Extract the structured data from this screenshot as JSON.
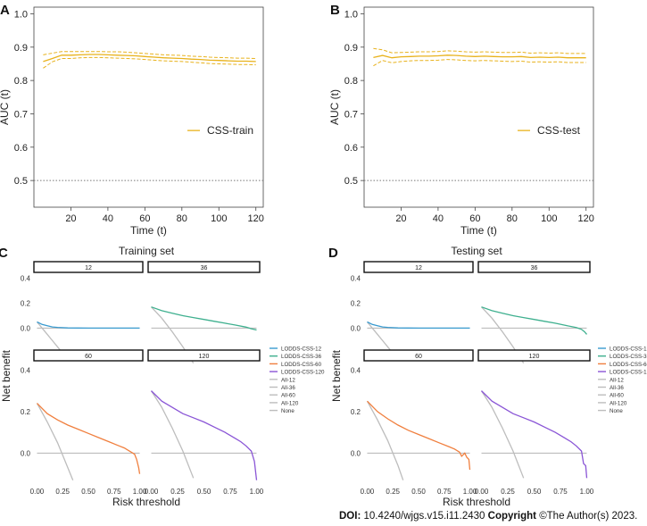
{
  "figure": {
    "footer_doi_label": "DOI:",
    "footer_doi": "10.4240/wjgs.v15.i11.2430",
    "footer_copyright_label": "Copyright",
    "footer_copyright": "©The Author(s) 2023.",
    "colors": {
      "auc_line": "#e8b21c",
      "lodds12": "#3a9bd0",
      "lodds36": "#3fb08f",
      "lodds60": "#f07f3e",
      "lodds120": "#8a55d6",
      "all": "#bdbdbd",
      "none": "#bdbdbd"
    }
  },
  "chart_data": [
    {
      "id": "A",
      "panel_label": "A",
      "type": "line",
      "title": "",
      "xlabel": "Time (t)",
      "ylabel": "AUC (t)",
      "xlim": [
        0,
        124
      ],
      "ylim": [
        0.42,
        1.02
      ],
      "xticks": [
        "20",
        "40",
        "60",
        "80",
        "100",
        "120"
      ],
      "xtick_values": [
        20,
        40,
        60,
        80,
        100,
        120
      ],
      "yticks": [
        "0.5",
        "0.6",
        "0.7",
        "0.8",
        "0.9",
        "1.0"
      ],
      "ytick_values": [
        0.5,
        0.6,
        0.7,
        0.8,
        0.9,
        1.0
      ],
      "reference_line": 0.5,
      "legend": "CSS-train",
      "series": [
        {
          "name": "CSS-train",
          "x": [
            5,
            10,
            15,
            20,
            25,
            30,
            35,
            40,
            45,
            50,
            55,
            60,
            65,
            70,
            75,
            80,
            85,
            90,
            95,
            100,
            105,
            110,
            115,
            120
          ],
          "y": [
            0.857,
            0.866,
            0.876,
            0.876,
            0.877,
            0.878,
            0.878,
            0.877,
            0.876,
            0.875,
            0.874,
            0.872,
            0.87,
            0.868,
            0.867,
            0.866,
            0.864,
            0.863,
            0.861,
            0.86,
            0.859,
            0.858,
            0.858,
            0.857
          ],
          "lower": [
            0.837,
            0.856,
            0.866,
            0.866,
            0.868,
            0.869,
            0.869,
            0.868,
            0.867,
            0.866,
            0.865,
            0.863,
            0.861,
            0.859,
            0.858,
            0.857,
            0.855,
            0.853,
            0.851,
            0.85,
            0.849,
            0.848,
            0.848,
            0.847
          ],
          "upper": [
            0.877,
            0.882,
            0.887,
            0.887,
            0.887,
            0.887,
            0.887,
            0.886,
            0.886,
            0.885,
            0.883,
            0.881,
            0.879,
            0.877,
            0.876,
            0.875,
            0.873,
            0.872,
            0.87,
            0.869,
            0.868,
            0.867,
            0.867,
            0.866
          ]
        }
      ]
    },
    {
      "id": "B",
      "panel_label": "B",
      "type": "line",
      "title": "",
      "xlabel": "Time (t)",
      "ylabel": "AUC (t)",
      "xlim": [
        0,
        124
      ],
      "ylim": [
        0.42,
        1.02
      ],
      "xticks": [
        "20",
        "40",
        "60",
        "80",
        "100",
        "120"
      ],
      "xtick_values": [
        20,
        40,
        60,
        80,
        100,
        120
      ],
      "yticks": [
        "0.5",
        "0.6",
        "0.7",
        "0.8",
        "0.9",
        "1.0"
      ],
      "ytick_values": [
        0.5,
        0.6,
        0.7,
        0.8,
        0.9,
        1.0
      ],
      "reference_line": 0.5,
      "legend": "CSS-test",
      "series": [
        {
          "name": "CSS-test",
          "x": [
            5,
            10,
            15,
            20,
            25,
            30,
            35,
            40,
            45,
            50,
            55,
            60,
            65,
            70,
            75,
            80,
            85,
            90,
            95,
            100,
            105,
            110,
            115,
            120
          ],
          "y": [
            0.869,
            0.875,
            0.868,
            0.871,
            0.872,
            0.873,
            0.873,
            0.874,
            0.876,
            0.875,
            0.873,
            0.872,
            0.873,
            0.872,
            0.871,
            0.871,
            0.872,
            0.869,
            0.87,
            0.869,
            0.87,
            0.868,
            0.868,
            0.868
          ],
          "lower": [
            0.844,
            0.86,
            0.853,
            0.857,
            0.859,
            0.86,
            0.86,
            0.861,
            0.863,
            0.862,
            0.86,
            0.859,
            0.86,
            0.859,
            0.858,
            0.857,
            0.858,
            0.855,
            0.856,
            0.855,
            0.856,
            0.854,
            0.854,
            0.854
          ],
          "upper": [
            0.896,
            0.892,
            0.883,
            0.884,
            0.885,
            0.886,
            0.886,
            0.887,
            0.889,
            0.888,
            0.886,
            0.885,
            0.886,
            0.885,
            0.884,
            0.884,
            0.885,
            0.882,
            0.883,
            0.882,
            0.883,
            0.881,
            0.881,
            0.881
          ]
        }
      ]
    },
    {
      "id": "C",
      "panel_label": "C",
      "type": "line",
      "title": "Training set",
      "xlabel": "Risk threshold",
      "ylabel": "Net benefit",
      "xlim": [
        -0.03,
        1.03
      ],
      "ylim": [
        -0.14,
        0.44
      ],
      "xticks": [
        "0.00",
        "0.25",
        "0.50",
        "0.75",
        "1.00"
      ],
      "xtick_values": [
        0,
        0.25,
        0.5,
        0.75,
        1.0
      ],
      "yticks": [
        "0.0",
        "0.2",
        "0.4"
      ],
      "ytick_values": [
        0,
        0.2,
        0.4
      ],
      "legend": [
        "LODDS-CSS-12",
        "LODDS-CSS-36",
        "LODDS-CSS-60",
        "LODDS-CSS-120",
        "All-12",
        "All-36",
        "All-60",
        "All-120",
        "None"
      ],
      "facets": [
        {
          "strip": "12",
          "model": "LODDS-CSS-12",
          "x": [
            0,
            0.05,
            0.1,
            0.15,
            0.2,
            0.3,
            0.4,
            0.5,
            0.6,
            0.7,
            0.8,
            0.9,
            1.0
          ],
          "y": [
            0.05,
            0.03,
            0.02,
            0.01,
            0.006,
            0.002,
            0.001,
            0,
            0,
            0,
            0,
            0,
            0
          ],
          "all_x": [
            0,
            0.05,
            0.1,
            0.15,
            0.2,
            0.25,
            0.3
          ],
          "all_y": [
            0.05,
            0.0,
            -0.05,
            -0.1,
            -0.15,
            -0.2,
            -0.26
          ]
        },
        {
          "strip": "36",
          "model": "LODDS-CSS-36",
          "x": [
            0,
            0.1,
            0.2,
            0.3,
            0.4,
            0.5,
            0.6,
            0.7,
            0.8,
            0.9,
            0.95,
            1.0
          ],
          "y": [
            0.17,
            0.14,
            0.12,
            0.1,
            0.085,
            0.07,
            0.055,
            0.04,
            0.025,
            0.008,
            -0.005,
            -0.015
          ],
          "all_x": [
            0,
            0.1,
            0.2,
            0.3,
            0.4
          ],
          "all_y": [
            0.17,
            0.08,
            -0.03,
            -0.15,
            -0.28
          ]
        },
        {
          "strip": "60",
          "model": "LODDS-CSS-60",
          "x": [
            0,
            0.1,
            0.2,
            0.3,
            0.4,
            0.5,
            0.6,
            0.7,
            0.8,
            0.85,
            0.9,
            0.95,
            0.97,
            0.99,
            1.0
          ],
          "y": [
            0.24,
            0.19,
            0.16,
            0.135,
            0.115,
            0.095,
            0.075,
            0.055,
            0.035,
            0.025,
            0.01,
            -0.005,
            -0.03,
            -0.07,
            -0.1
          ],
          "all_x": [
            0,
            0.1,
            0.2,
            0.3,
            0.35
          ],
          "all_y": [
            0.24,
            0.15,
            0.05,
            -0.07,
            -0.13
          ]
        },
        {
          "strip": "120",
          "model": "LODDS-CSS-120",
          "x": [
            0,
            0.1,
            0.2,
            0.3,
            0.4,
            0.5,
            0.6,
            0.7,
            0.8,
            0.85,
            0.9,
            0.95,
            0.98,
            1.0
          ],
          "y": [
            0.3,
            0.25,
            0.22,
            0.19,
            0.17,
            0.15,
            0.125,
            0.1,
            0.07,
            0.055,
            0.035,
            0.01,
            -0.04,
            -0.13
          ],
          "all_x": [
            0,
            0.1,
            0.2,
            0.3,
            0.4
          ],
          "all_y": [
            0.3,
            0.22,
            0.12,
            0.01,
            -0.12
          ]
        }
      ]
    },
    {
      "id": "D",
      "panel_label": "D",
      "type": "line",
      "title": "Testing set",
      "xlabel": "Risk threshold",
      "ylabel": "Net benefit",
      "xlim": [
        -0.03,
        1.03
      ],
      "ylim": [
        -0.14,
        0.44
      ],
      "xticks": [
        "0.00",
        "0.25",
        "0.50",
        "0.75",
        "1.00"
      ],
      "xtick_values": [
        0,
        0.25,
        0.5,
        0.75,
        1.0
      ],
      "yticks": [
        "0.0",
        "0.2",
        "0.4"
      ],
      "ytick_values": [
        0,
        0.2,
        0.4
      ],
      "legend": [
        "LODDS-CSS-12",
        "LODDS-CSS-36",
        "LODDS-CSS-60",
        "LODDS-CSS-120",
        "All-12",
        "All-36",
        "All-60",
        "All-120",
        "None"
      ],
      "facets": [
        {
          "strip": "12",
          "model": "LODDS-CSS-12",
          "x": [
            0,
            0.05,
            0.1,
            0.15,
            0.2,
            0.3,
            0.4,
            0.5,
            0.6,
            0.7,
            0.8,
            0.9,
            1.0
          ],
          "y": [
            0.05,
            0.03,
            0.02,
            0.01,
            0.006,
            0.002,
            0.001,
            0,
            0,
            0,
            0,
            0,
            0
          ],
          "all_x": [
            0,
            0.05,
            0.1,
            0.15,
            0.2,
            0.25,
            0.3
          ],
          "all_y": [
            0.05,
            0.0,
            -0.05,
            -0.1,
            -0.15,
            -0.2,
            -0.26
          ]
        },
        {
          "strip": "36",
          "model": "LODDS-CSS-36",
          "x": [
            0,
            0.1,
            0.2,
            0.3,
            0.4,
            0.5,
            0.6,
            0.7,
            0.8,
            0.9,
            0.95,
            0.98,
            1.0
          ],
          "y": [
            0.17,
            0.14,
            0.12,
            0.1,
            0.085,
            0.07,
            0.055,
            0.04,
            0.022,
            0.005,
            -0.01,
            -0.03,
            -0.05
          ],
          "all_x": [
            0,
            0.1,
            0.2,
            0.3,
            0.4
          ],
          "all_y": [
            0.17,
            0.08,
            -0.03,
            -0.15,
            -0.28
          ]
        },
        {
          "strip": "60",
          "model": "LODDS-CSS-60",
          "x": [
            0,
            0.1,
            0.2,
            0.3,
            0.4,
            0.5,
            0.6,
            0.7,
            0.8,
            0.85,
            0.9,
            0.92,
            0.95,
            0.97,
            0.99,
            1.0
          ],
          "y": [
            0.25,
            0.2,
            0.165,
            0.135,
            0.11,
            0.09,
            0.07,
            0.05,
            0.03,
            0.02,
            0.005,
            -0.015,
            0.0,
            -0.02,
            -0.03,
            -0.08
          ],
          "all_x": [
            0,
            0.1,
            0.2,
            0.3,
            0.35
          ],
          "all_y": [
            0.25,
            0.16,
            0.06,
            -0.06,
            -0.13
          ]
        },
        {
          "strip": "120",
          "model": "LODDS-CSS-120",
          "x": [
            0,
            0.1,
            0.2,
            0.3,
            0.4,
            0.5,
            0.6,
            0.7,
            0.8,
            0.85,
            0.9,
            0.95,
            0.97,
            0.99,
            1.0
          ],
          "y": [
            0.3,
            0.25,
            0.22,
            0.19,
            0.17,
            0.15,
            0.125,
            0.1,
            0.07,
            0.055,
            0.035,
            0.01,
            -0.05,
            -0.06,
            -0.12
          ],
          "all_x": [
            0,
            0.1,
            0.2,
            0.3,
            0.4
          ],
          "all_y": [
            0.3,
            0.22,
            0.12,
            0.01,
            -0.12
          ]
        }
      ]
    }
  ]
}
